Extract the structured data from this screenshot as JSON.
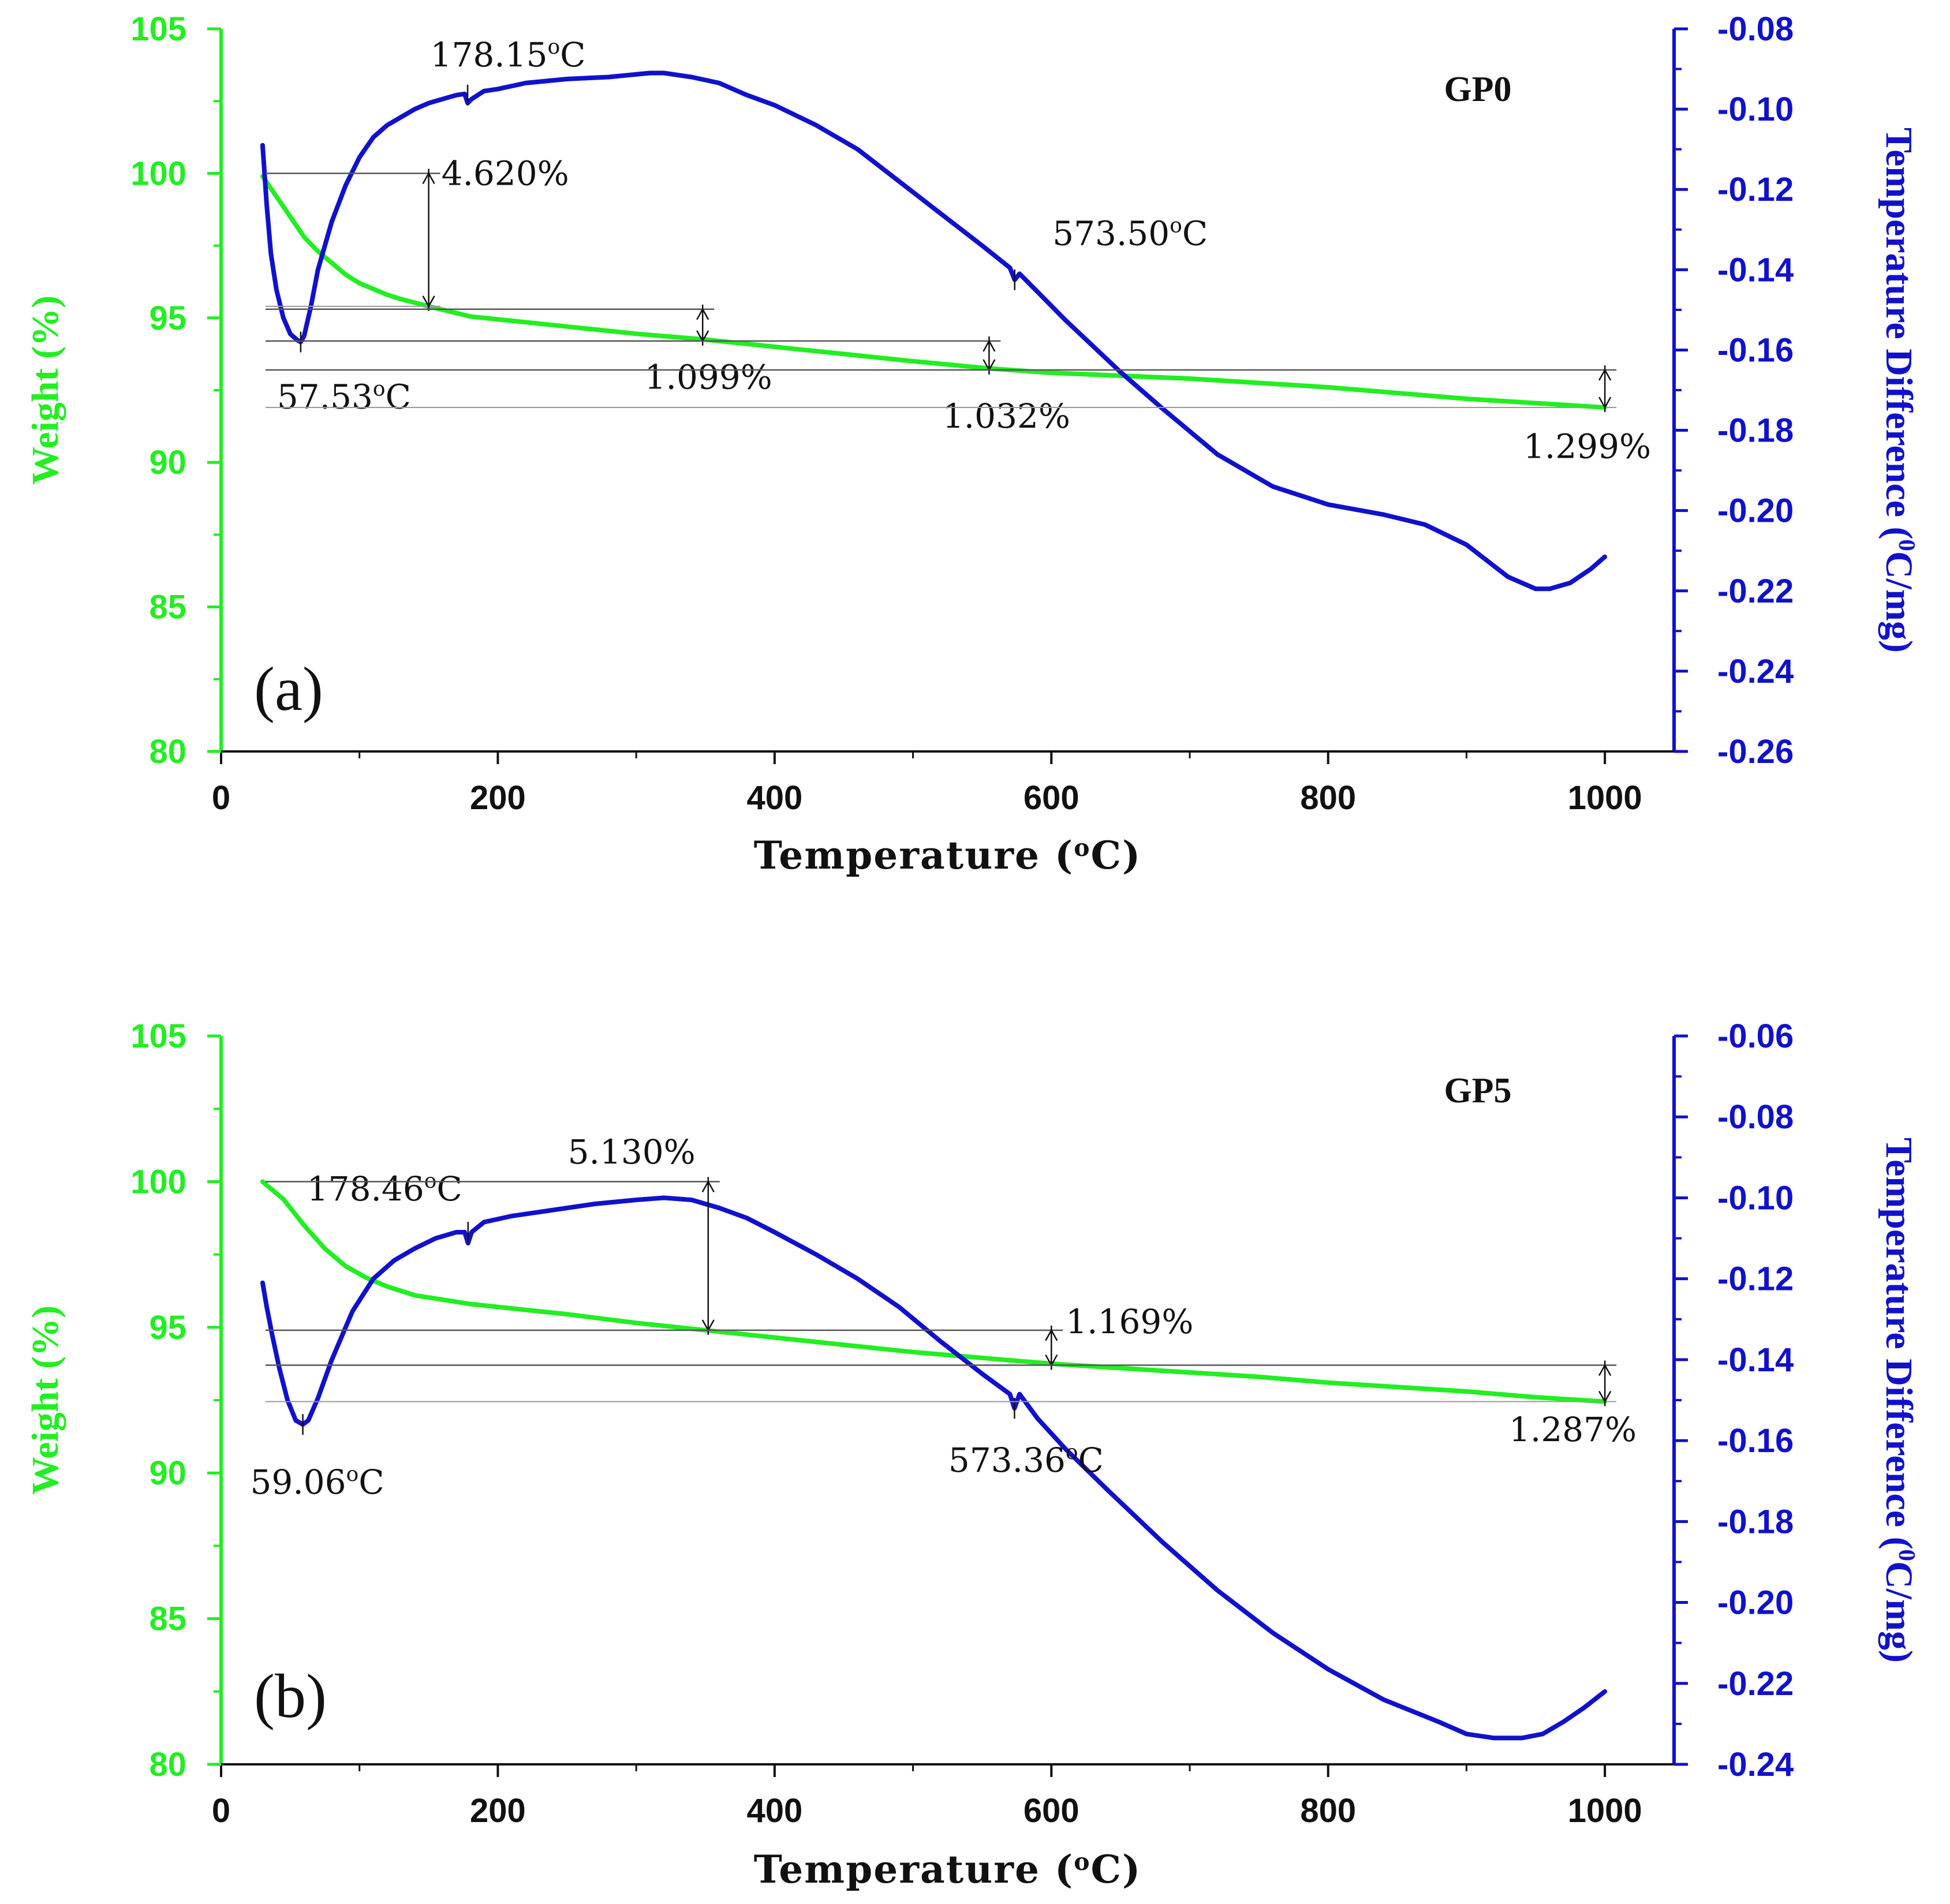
{
  "chart_data": [
    {
      "type": "line",
      "panel_label": "(a)",
      "sample_label": "GP0",
      "xlabel": "Temperature (°C)",
      "xlabel_parts": {
        "pre": "Temperature (",
        "sup": "o",
        "post": "C)"
      },
      "ylabel": "Weight (%)",
      "y2label": "Temperature Difference (⁰C/mg)",
      "y2label_parts": {
        "pre": "Temperature Difference (",
        "sup": "0",
        "post": "C/mg)"
      },
      "xlim": [
        0,
        1050
      ],
      "ylim": [
        80,
        105
      ],
      "y2lim": [
        -0.26,
        -0.08
      ],
      "x_ticks": [
        "0",
        "200",
        "400",
        "600",
        "800",
        "1000"
      ],
      "y_ticks": [
        "80",
        "85",
        "90",
        "95",
        "100",
        "105"
      ],
      "y2_ticks": [
        "-0.26",
        "-0.24",
        "-0.22",
        "-0.20",
        "-0.18",
        "-0.16",
        "-0.14",
        "-0.12",
        "-0.10",
        "-0.08"
      ],
      "series": [
        {
          "name": "Weight (%)",
          "color": "#22ee22",
          "axis": "left",
          "x": [
            30,
            40,
            50,
            60,
            70,
            80,
            90,
            100,
            110,
            120,
            130,
            150,
            180,
            220,
            260,
            300,
            350,
            400,
            450,
            500,
            555,
            600,
            650,
            700,
            750,
            800,
            850,
            900,
            950,
            1000
          ],
          "y": [
            99.9,
            99.2,
            98.5,
            97.8,
            97.3,
            96.9,
            96.5,
            96.2,
            96.0,
            95.8,
            95.65,
            95.4,
            95.05,
            94.85,
            94.65,
            94.45,
            94.25,
            94.0,
            93.75,
            93.5,
            93.25,
            93.1,
            93.0,
            92.9,
            92.75,
            92.6,
            92.4,
            92.2,
            92.05,
            91.9
          ]
        },
        {
          "name": "Temperature Difference (DTA)",
          "color": "#1111cc",
          "axis": "right",
          "x": [
            30,
            33,
            36,
            40,
            45,
            50,
            55,
            57.5,
            60,
            65,
            70,
            80,
            90,
            100,
            110,
            120,
            130,
            140,
            150,
            160,
            170,
            176,
            178.15,
            181,
            190,
            200,
            220,
            250,
            280,
            310,
            320,
            340,
            360,
            380,
            400,
            430,
            460,
            490,
            520,
            550,
            570,
            573.5,
            577,
            590,
            610,
            630,
            650,
            680,
            720,
            760,
            800,
            840,
            870,
            900,
            930,
            950,
            960,
            975,
            990,
            1000
          ],
          "y": [
            -0.109,
            -0.124,
            -0.136,
            -0.145,
            -0.152,
            -0.156,
            -0.1575,
            -0.158,
            -0.1565,
            -0.149,
            -0.14,
            -0.128,
            -0.119,
            -0.112,
            -0.107,
            -0.104,
            -0.102,
            -0.1,
            -0.0985,
            -0.0975,
            -0.0965,
            -0.0962,
            -0.0985,
            -0.0975,
            -0.0955,
            -0.095,
            -0.0935,
            -0.0925,
            -0.092,
            -0.091,
            -0.091,
            -0.092,
            -0.0935,
            -0.0965,
            -0.099,
            -0.104,
            -0.11,
            -0.118,
            -0.126,
            -0.134,
            -0.1395,
            -0.1425,
            -0.141,
            -0.1455,
            -0.1525,
            -0.159,
            -0.1655,
            -0.1745,
            -0.186,
            -0.194,
            -0.1985,
            -0.201,
            -0.2035,
            -0.2085,
            -0.2165,
            -0.2195,
            -0.2195,
            -0.218,
            -0.2145,
            -0.2115
          ]
        }
      ],
      "annotations": [
        {
          "text": "178.15°C",
          "pre": "178.15",
          "sup": "o",
          "post": "C",
          "x": 178.15,
          "axis": "right",
          "y": -0.0965
        },
        {
          "text": "57.53°C",
          "pre": "57.53",
          "sup": "o",
          "post": "C",
          "x": 57.53,
          "axis": "right",
          "y": -0.158
        },
        {
          "text": "573.50°C",
          "pre": "573.50",
          "sup": "o",
          "post": "C",
          "x": 573.5,
          "axis": "right",
          "y": -0.1425
        },
        {
          "text": "4.620%",
          "x": 150,
          "from": 100.0,
          "to": 95.4
        },
        {
          "text": "1.099%",
          "x": 348,
          "from": 95.3,
          "to": 94.2
        },
        {
          "text": "1.032%",
          "x": 555,
          "from": 94.2,
          "to": 93.2
        },
        {
          "text": "1.299%",
          "x": 1000,
          "from": 93.2,
          "to": 91.9
        }
      ]
    },
    {
      "type": "line",
      "panel_label": "(b)",
      "sample_label": "GP5",
      "xlabel": "Temperature (°C)",
      "xlabel_parts": {
        "pre": "Temperature (",
        "sup": "o",
        "post": "C)"
      },
      "ylabel": "Weight (%)",
      "y2label": "Temperature Difference (⁰C/mg)",
      "y2label_parts": {
        "pre": "Temperature Difference (",
        "sup": "0",
        "post": "C/mg)"
      },
      "xlim": [
        0,
        1050
      ],
      "ylim": [
        80,
        105
      ],
      "y2lim": [
        -0.24,
        -0.06
      ],
      "x_ticks": [
        "0",
        "200",
        "400",
        "600",
        "800",
        "1000"
      ],
      "y_ticks": [
        "80",
        "85",
        "90",
        "95",
        "100",
        "105"
      ],
      "y2_ticks": [
        "-0.24",
        "-0.22",
        "-0.20",
        "-0.18",
        "-0.16",
        "-0.14",
        "-0.12",
        "-0.10",
        "-0.08",
        "-0.06"
      ],
      "series": [
        {
          "name": "Weight (%)",
          "color": "#22ee22",
          "axis": "left",
          "x": [
            30,
            45,
            60,
            75,
            90,
            105,
            120,
            140,
            160,
            180,
            200,
            250,
            300,
            350,
            400,
            450,
            500,
            550,
            600,
            650,
            700,
            750,
            800,
            850,
            900,
            950,
            1000
          ],
          "y": [
            100.0,
            99.4,
            98.5,
            97.7,
            97.1,
            96.7,
            96.4,
            96.1,
            95.95,
            95.8,
            95.7,
            95.45,
            95.15,
            94.9,
            94.65,
            94.4,
            94.15,
            93.95,
            93.75,
            93.6,
            93.45,
            93.3,
            93.1,
            92.95,
            92.8,
            92.6,
            92.45
          ]
        },
        {
          "name": "Temperature Difference (DTA)",
          "color": "#1111cc",
          "axis": "right",
          "x": [
            30,
            33,
            37,
            42,
            48,
            54,
            59.06,
            63,
            70,
            80,
            95,
            110,
            125,
            140,
            155,
            170,
            176,
            178.46,
            181,
            190,
            210,
            240,
            270,
            300,
            320,
            340,
            360,
            380,
            400,
            430,
            460,
            490,
            520,
            550,
            570,
            573.36,
            577,
            590,
            610,
            640,
            680,
            720,
            760,
            800,
            840,
            880,
            900,
            920,
            940,
            955,
            970,
            985,
            1000
          ],
          "y": [
            -0.121,
            -0.127,
            -0.134,
            -0.142,
            -0.15,
            -0.155,
            -0.156,
            -0.155,
            -0.1495,
            -0.14,
            -0.128,
            -0.12,
            -0.1155,
            -0.1125,
            -0.11,
            -0.1085,
            -0.1085,
            -0.1112,
            -0.1085,
            -0.106,
            -0.1045,
            -0.103,
            -0.1015,
            -0.1005,
            -0.1,
            -0.1005,
            -0.1025,
            -0.105,
            -0.1085,
            -0.114,
            -0.12,
            -0.127,
            -0.1355,
            -0.1435,
            -0.1485,
            -0.152,
            -0.1485,
            -0.1545,
            -0.162,
            -0.172,
            -0.185,
            -0.197,
            -0.2075,
            -0.2165,
            -0.224,
            -0.2295,
            -0.2325,
            -0.2335,
            -0.2335,
            -0.2325,
            -0.2295,
            -0.226,
            -0.222
          ]
        }
      ],
      "annotations": [
        {
          "text": "178.46°C",
          "pre": "178.46",
          "sup": "o",
          "post": "C",
          "x": 178.46,
          "axis": "right",
          "y": -0.1085
        },
        {
          "text": "59.06°C",
          "pre": "59.06",
          "sup": "o",
          "post": "C",
          "x": 59.06,
          "axis": "right",
          "y": -0.156
        },
        {
          "text": "573.36°C",
          "pre": "573.36",
          "sup": "o",
          "post": "C",
          "x": 573.36,
          "axis": "right",
          "y": -0.152
        },
        {
          "text": "5.130%",
          "x": 352,
          "from": 100.0,
          "to": 94.9
        },
        {
          "text": "1.169%",
          "x": 600,
          "from": 94.9,
          "to": 93.7
        },
        {
          "text": "1.287%",
          "x": 1000,
          "from": 93.7,
          "to": 92.45
        }
      ]
    }
  ]
}
